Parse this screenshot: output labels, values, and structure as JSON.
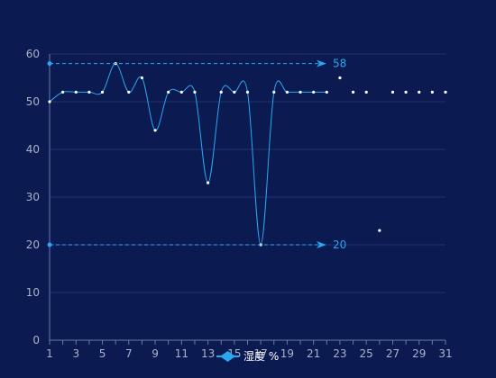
{
  "chart_data": {
    "type": "line",
    "x": [
      1,
      2,
      3,
      4,
      5,
      6,
      7,
      8,
      9,
      10,
      11,
      12,
      13,
      14,
      15,
      16,
      17,
      18,
      19,
      20,
      21,
      22,
      23,
      24,
      25,
      26,
      27,
      28,
      29,
      30,
      31
    ],
    "series": [
      {
        "name": "湿度 %",
        "values": [
          50,
          52,
          52,
          52,
          52,
          58,
          52,
          55,
          44,
          52,
          52,
          52,
          33,
          52,
          52,
          52,
          20,
          52,
          52,
          52,
          52,
          52,
          55,
          52,
          52,
          23,
          52,
          52,
          52,
          52,
          52
        ],
        "connected_until_x": 22
      }
    ],
    "x_tick_labels": [
      "1",
      "3",
      "5",
      "7",
      "9",
      "11",
      "13",
      "15",
      "17",
      "19",
      "21",
      "23",
      "25",
      "27",
      "29",
      "31"
    ],
    "y_tick_labels": [
      "0",
      "10",
      "20",
      "30",
      "40",
      "50",
      "60"
    ],
    "ylim": [
      0,
      60
    ],
    "xlim": [
      1,
      31
    ],
    "grid": true,
    "legend": "bottom",
    "mark_lines": [
      {
        "name": "max",
        "value": 58,
        "label": "58"
      },
      {
        "name": "min",
        "value": 20,
        "label": "20"
      }
    ],
    "colors": {
      "background": "#0c1a52",
      "line": "#29a8f0",
      "point": "#ffffff",
      "grid": "#223070",
      "axis": "#6a78a8",
      "tick_text": "#a9b3c9",
      "legend_text": "#ffffff",
      "mark_line": "#29a8f0"
    }
  }
}
